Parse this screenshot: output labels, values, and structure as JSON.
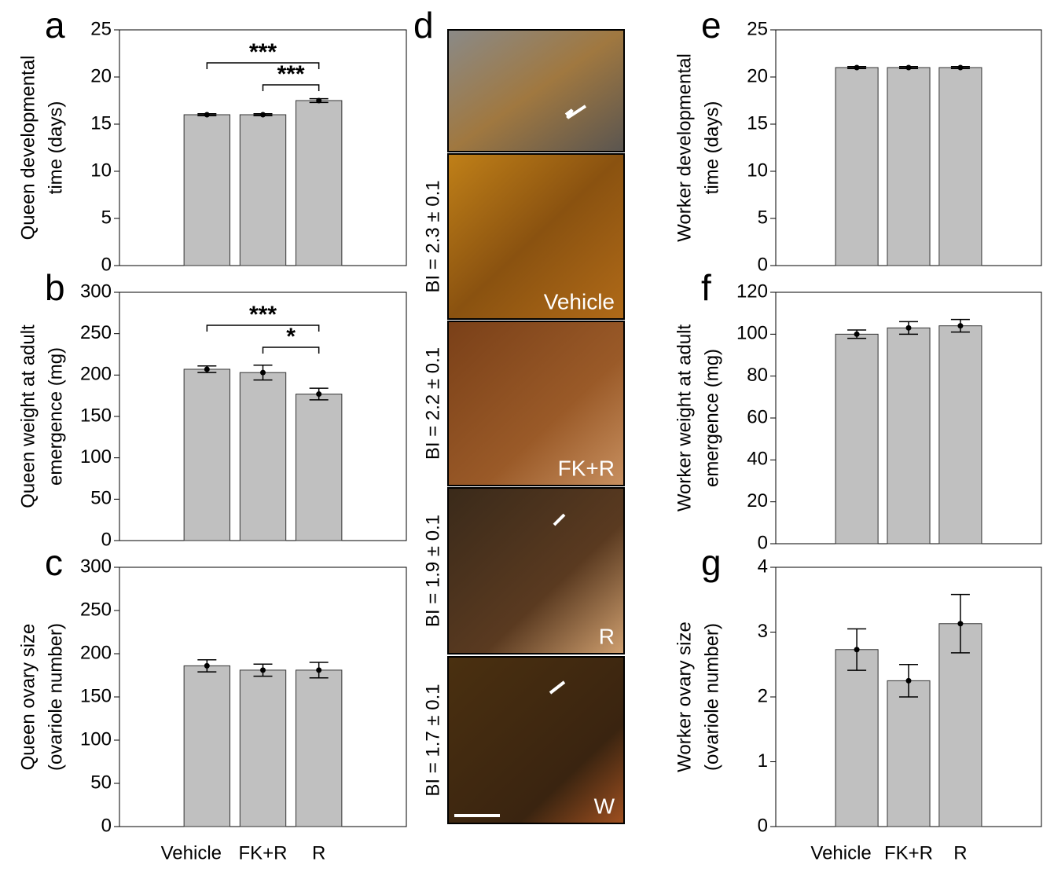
{
  "chart_data": [
    {
      "type": "bar",
      "panel_label": "a",
      "ylabel": [
        "Queen developmental",
        "time (days)"
      ],
      "categories": [
        null,
        null,
        null
      ],
      "values": [
        16,
        16,
        17.5
      ],
      "error": [
        0.1,
        0.1,
        0.2
      ],
      "ylim": [
        0,
        25
      ],
      "yticks": [
        0,
        5,
        10,
        15,
        20,
        25
      ],
      "annotations": [
        "***",
        "***"
      ],
      "color": "#c0c0c0"
    },
    {
      "type": "bar",
      "panel_label": "b",
      "ylabel": [
        "Queen weight at adult",
        "emergence (mg)"
      ],
      "categories": [
        null,
        null,
        null
      ],
      "values": [
        207,
        203,
        177
      ],
      "error": [
        4,
        9,
        7
      ],
      "ylim": [
        0,
        300
      ],
      "yticks": [
        0,
        50,
        100,
        150,
        200,
        250,
        300
      ],
      "annotations": [
        "***",
        "*"
      ],
      "color": "#c0c0c0"
    },
    {
      "type": "bar",
      "panel_label": "c",
      "ylabel": [
        "Queen ovary size",
        "(ovariole number)"
      ],
      "categories": [
        "Vehicle",
        "FK+R",
        "R"
      ],
      "values": [
        186,
        181,
        181
      ],
      "error": [
        7,
        7,
        9
      ],
      "ylim": [
        0,
        300
      ],
      "yticks": [
        0,
        50,
        100,
        150,
        200,
        250,
        300
      ],
      "color": "#c0c0c0"
    },
    {
      "type": "bar",
      "panel_label": "e",
      "ylabel": [
        "Worker developmental",
        "time (days)"
      ],
      "categories": [
        null,
        null,
        null
      ],
      "values": [
        21,
        21,
        21
      ],
      "error": [
        0.1,
        0.1,
        0.1
      ],
      "ylim": [
        0,
        25
      ],
      "yticks": [
        0,
        5,
        10,
        15,
        20,
        25
      ],
      "color": "#c0c0c0"
    },
    {
      "type": "bar",
      "panel_label": "f",
      "ylabel": [
        "Worker weight at adult",
        "emergence (mg)"
      ],
      "categories": [
        null,
        null,
        null
      ],
      "values": [
        100,
        103,
        104
      ],
      "error": [
        2,
        3,
        3
      ],
      "ylim": [
        0,
        120
      ],
      "yticks": [
        0,
        20,
        40,
        60,
        80,
        100,
        120
      ],
      "color": "#c0c0c0"
    },
    {
      "type": "bar",
      "panel_label": "g",
      "ylabel": [
        "Worker ovary size",
        "(ovariole number)"
      ],
      "categories": [
        "Vehicle",
        "FK+R",
        "R"
      ],
      "values": [
        2.73,
        2.25,
        3.13
      ],
      "error": [
        0.32,
        0.25,
        0.45
      ],
      "ylim": [
        0,
        4
      ],
      "yticks": [
        0,
        1,
        2,
        3,
        4
      ],
      "color": "#c0c0c0"
    }
  ],
  "panel_d": {
    "panel_label": "d",
    "photos": [
      {
        "bi": null,
        "label": null
      },
      {
        "bi": "BI = 2.3 ± 0.1",
        "label": "Vehicle"
      },
      {
        "bi": "BI = 2.2 ± 0.1",
        "label": "FK+R"
      },
      {
        "bi": "BI = 1.9 ± 0.1",
        "label": "R"
      },
      {
        "bi": "BI = 1.7 ± 0.1",
        "label": "W"
      }
    ]
  }
}
